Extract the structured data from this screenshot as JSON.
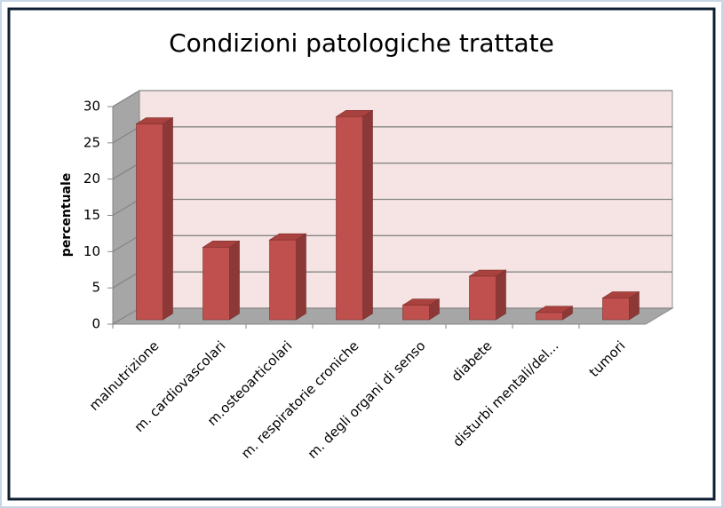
{
  "chart_data": {
    "type": "bar3d",
    "title": "Condizioni patologiche trattate",
    "y_label": "percentuale",
    "categories": [
      "malnutrizione",
      "m. cardiovascolari",
      "m.osteoarticolari",
      "m. respiratorie croniche",
      "m. degli organi di senso",
      "diabete",
      "disturbi mentali/del...",
      "tumori"
    ],
    "values": [
      27,
      10,
      11,
      28,
      2,
      6,
      1,
      3
    ],
    "color": "#c0504d",
    "ylim": [
      0,
      30
    ],
    "yticks": [
      0,
      5,
      10,
      15,
      20,
      25,
      30
    ],
    "grid": true
  }
}
